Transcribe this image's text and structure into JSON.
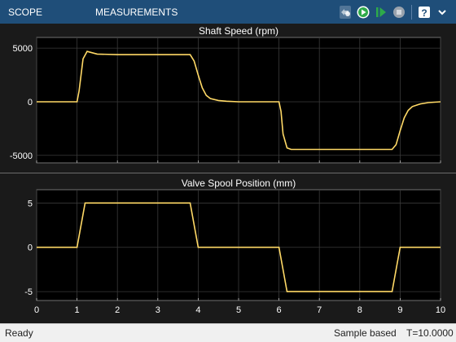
{
  "toolbar": {
    "tabs": [
      {
        "label": "SCOPE"
      },
      {
        "label": "MEASUREMENTS"
      }
    ],
    "icons": [
      "pin-icon",
      "run-icon",
      "step-forward-icon",
      "stop-icon",
      "help-icon",
      "expand-icon"
    ],
    "colors": {
      "background": "#1f4e79",
      "run": "#2eaa4a",
      "stop": "#9aa3ad"
    }
  },
  "plots": {
    "top_title": "Shaft Speed (rpm)",
    "bottom_title": "Valve Spool Position (mm)"
  },
  "chart_data": [
    {
      "type": "line",
      "title": "Shaft Speed (rpm)",
      "xlabel": "",
      "ylabel": "",
      "xlim": [
        0,
        10
      ],
      "ylim": [
        -5700,
        6000
      ],
      "yticks": [
        5000,
        0,
        -5000
      ],
      "yticklabels": [
        "5000",
        "0",
        "-5000"
      ],
      "grid": true,
      "line_color": "#ffd966",
      "background": "#000000",
      "x": [
        0,
        1,
        1.05,
        1.15,
        1.25,
        1.3,
        1.5,
        2,
        3,
        3.8,
        3.9,
        4.0,
        4.1,
        4.2,
        4.3,
        4.5,
        4.7,
        5.0,
        6.0,
        6.05,
        6.1,
        6.2,
        6.3,
        6.5,
        7,
        8,
        8.8,
        8.9,
        9.0,
        9.1,
        9.2,
        9.3,
        9.5,
        9.7,
        10
      ],
      "y": [
        0,
        0,
        1000,
        4000,
        4700,
        4650,
        4450,
        4400,
        4400,
        4400,
        3800,
        2500,
        1300,
        600,
        300,
        120,
        50,
        0,
        0,
        -900,
        -3000,
        -4300,
        -4450,
        -4450,
        -4450,
        -4450,
        -4450,
        -4000,
        -2700,
        -1500,
        -800,
        -450,
        -200,
        -80,
        0
      ]
    },
    {
      "type": "line",
      "title": "Valve Spool Position (mm)",
      "xlabel": "",
      "ylabel": "",
      "xlim": [
        0,
        10
      ],
      "ylim": [
        -6,
        6.5
      ],
      "yticks": [
        5,
        0,
        -5
      ],
      "yticklabels": [
        "5",
        "0",
        "-5"
      ],
      "xticks": [
        0,
        1,
        2,
        3,
        4,
        5,
        6,
        7,
        8,
        9,
        10
      ],
      "xticklabels": [
        "0",
        "1",
        "2",
        "3",
        "4",
        "5",
        "6",
        "7",
        "8",
        "9",
        "10"
      ],
      "grid": true,
      "line_color": "#ffd966",
      "background": "#000000",
      "x": [
        0,
        1,
        1.2,
        3.8,
        4.0,
        6.0,
        6.2,
        8.8,
        9.0,
        10
      ],
      "y": [
        0,
        0,
        5,
        5,
        0,
        0,
        -5,
        -5,
        0,
        0
      ]
    }
  ],
  "status": {
    "left": "Ready",
    "mode": "Sample based",
    "time": "T=10.0000"
  }
}
